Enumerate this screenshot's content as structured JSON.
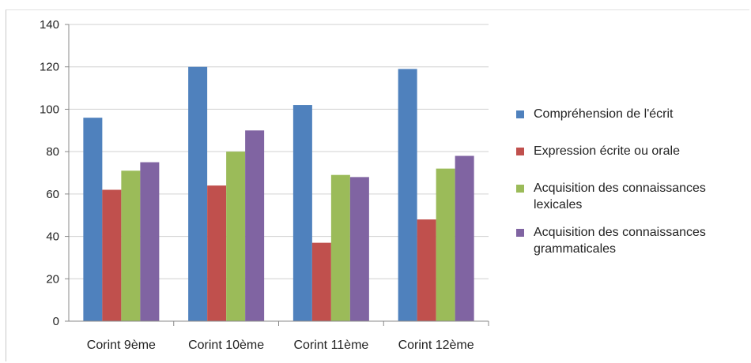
{
  "chart_data": {
    "type": "bar",
    "categories": [
      "Corint 9ème",
      "Corint 10ème",
      "Corint 11ème",
      "Corint 12ème"
    ],
    "series": [
      {
        "name": "Compréhension de l'écrit",
        "color": "#4f81bd",
        "values": [
          96,
          120,
          102,
          119
        ]
      },
      {
        "name": "Expression écrite ou orale",
        "color": "#c0504d",
        "values": [
          62,
          64,
          37,
          48
        ]
      },
      {
        "name": "Acquisition des connaissances lexicales",
        "color": "#9bbb59",
        "values": [
          71,
          80,
          69,
          72
        ]
      },
      {
        "name": "Acquisition des connaissances grammaticales",
        "color": "#8064a2",
        "values": [
          75,
          90,
          68,
          78
        ]
      }
    ],
    "title": "",
    "xlabel": "",
    "ylabel": "",
    "ylim": [
      0,
      140
    ],
    "yticks": [
      "0",
      "20",
      "40",
      "60",
      "80",
      "100",
      "120",
      "140"
    ],
    "grid": true,
    "legend_position": "right"
  }
}
